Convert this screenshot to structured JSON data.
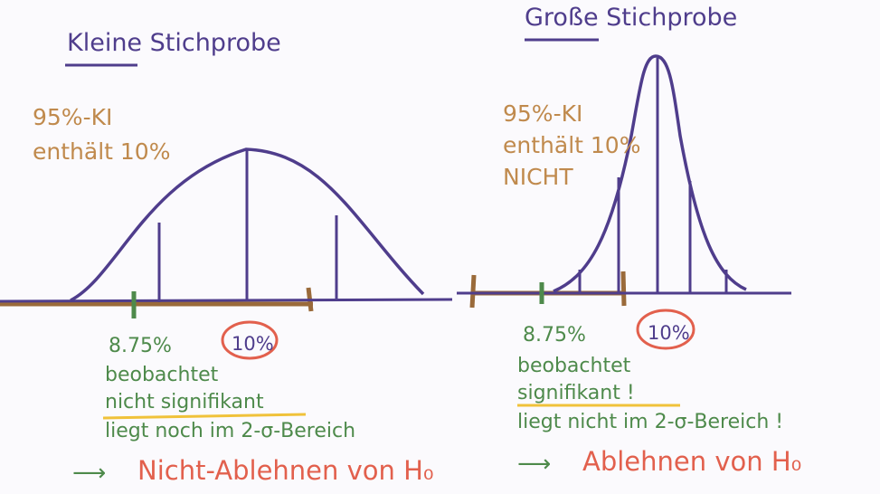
{
  "panels": {
    "left": {
      "title": "Kleine Stichprobe",
      "ki_line1": "95%-KI",
      "ki_line2": "enthält 10%",
      "ki_line3": "",
      "observed_value": "8.75%",
      "null_value": "10%",
      "observed_label": "beobachtet",
      "significance": "nicht signifikant",
      "range_note": "liegt noch im 2-σ-Bereich",
      "arrow": "⟶",
      "conclusion": "Nicht-Ablehnen von H₀"
    },
    "right": {
      "title": "Große Stichprobe",
      "ki_line1": "95%-KI",
      "ki_line2": "enthält 10%",
      "ki_line3": "NICHT",
      "observed_value": "8.75%",
      "null_value": "10%",
      "observed_label": "beobachtet",
      "significance": "signifikant !",
      "range_note": "liegt nicht im 2-σ-Bereich !",
      "arrow": "⟶",
      "conclusion": "Ablehnen von H₀"
    }
  },
  "colors": {
    "ink_purple": "#4f3d8c",
    "interval_brown": "#9a6a3a",
    "observed_green": "#4e8a4b",
    "highlight_yellow": "#f0c23a",
    "conclusion_red": "#e2604d",
    "label_orange": "#c08a4d"
  }
}
